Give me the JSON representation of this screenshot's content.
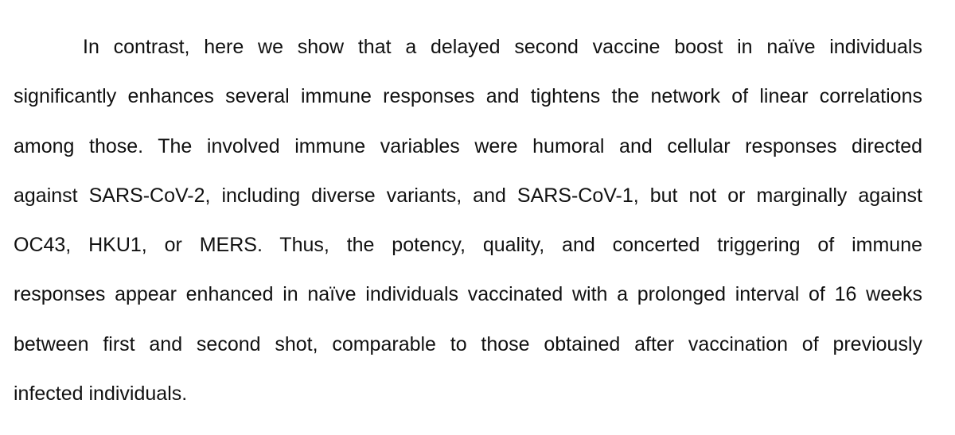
{
  "document": {
    "paragraph_lines": [
      "In contrast, here we show that a delayed second vaccine boost in naïve individuals",
      "significantly enhances several immune responses and tightens the network of linear correlations",
      "among those. The involved immune variables were humoral and cellular responses directed",
      "against SARS-CoV-2, including diverse variants, and SARS-CoV-1, but not or marginally against",
      "OC43, HKU1, or MERS. Thus, the potency, quality, and concerted triggering of immune",
      "responses appear enhanced in naïve individuals vaccinated with a prolonged interval of 16 weeks",
      "between first and second shot, comparable to those obtained after vaccination of previously",
      "infected individuals."
    ]
  },
  "colors": {
    "background": "#ffffff",
    "text": "#111111"
  }
}
